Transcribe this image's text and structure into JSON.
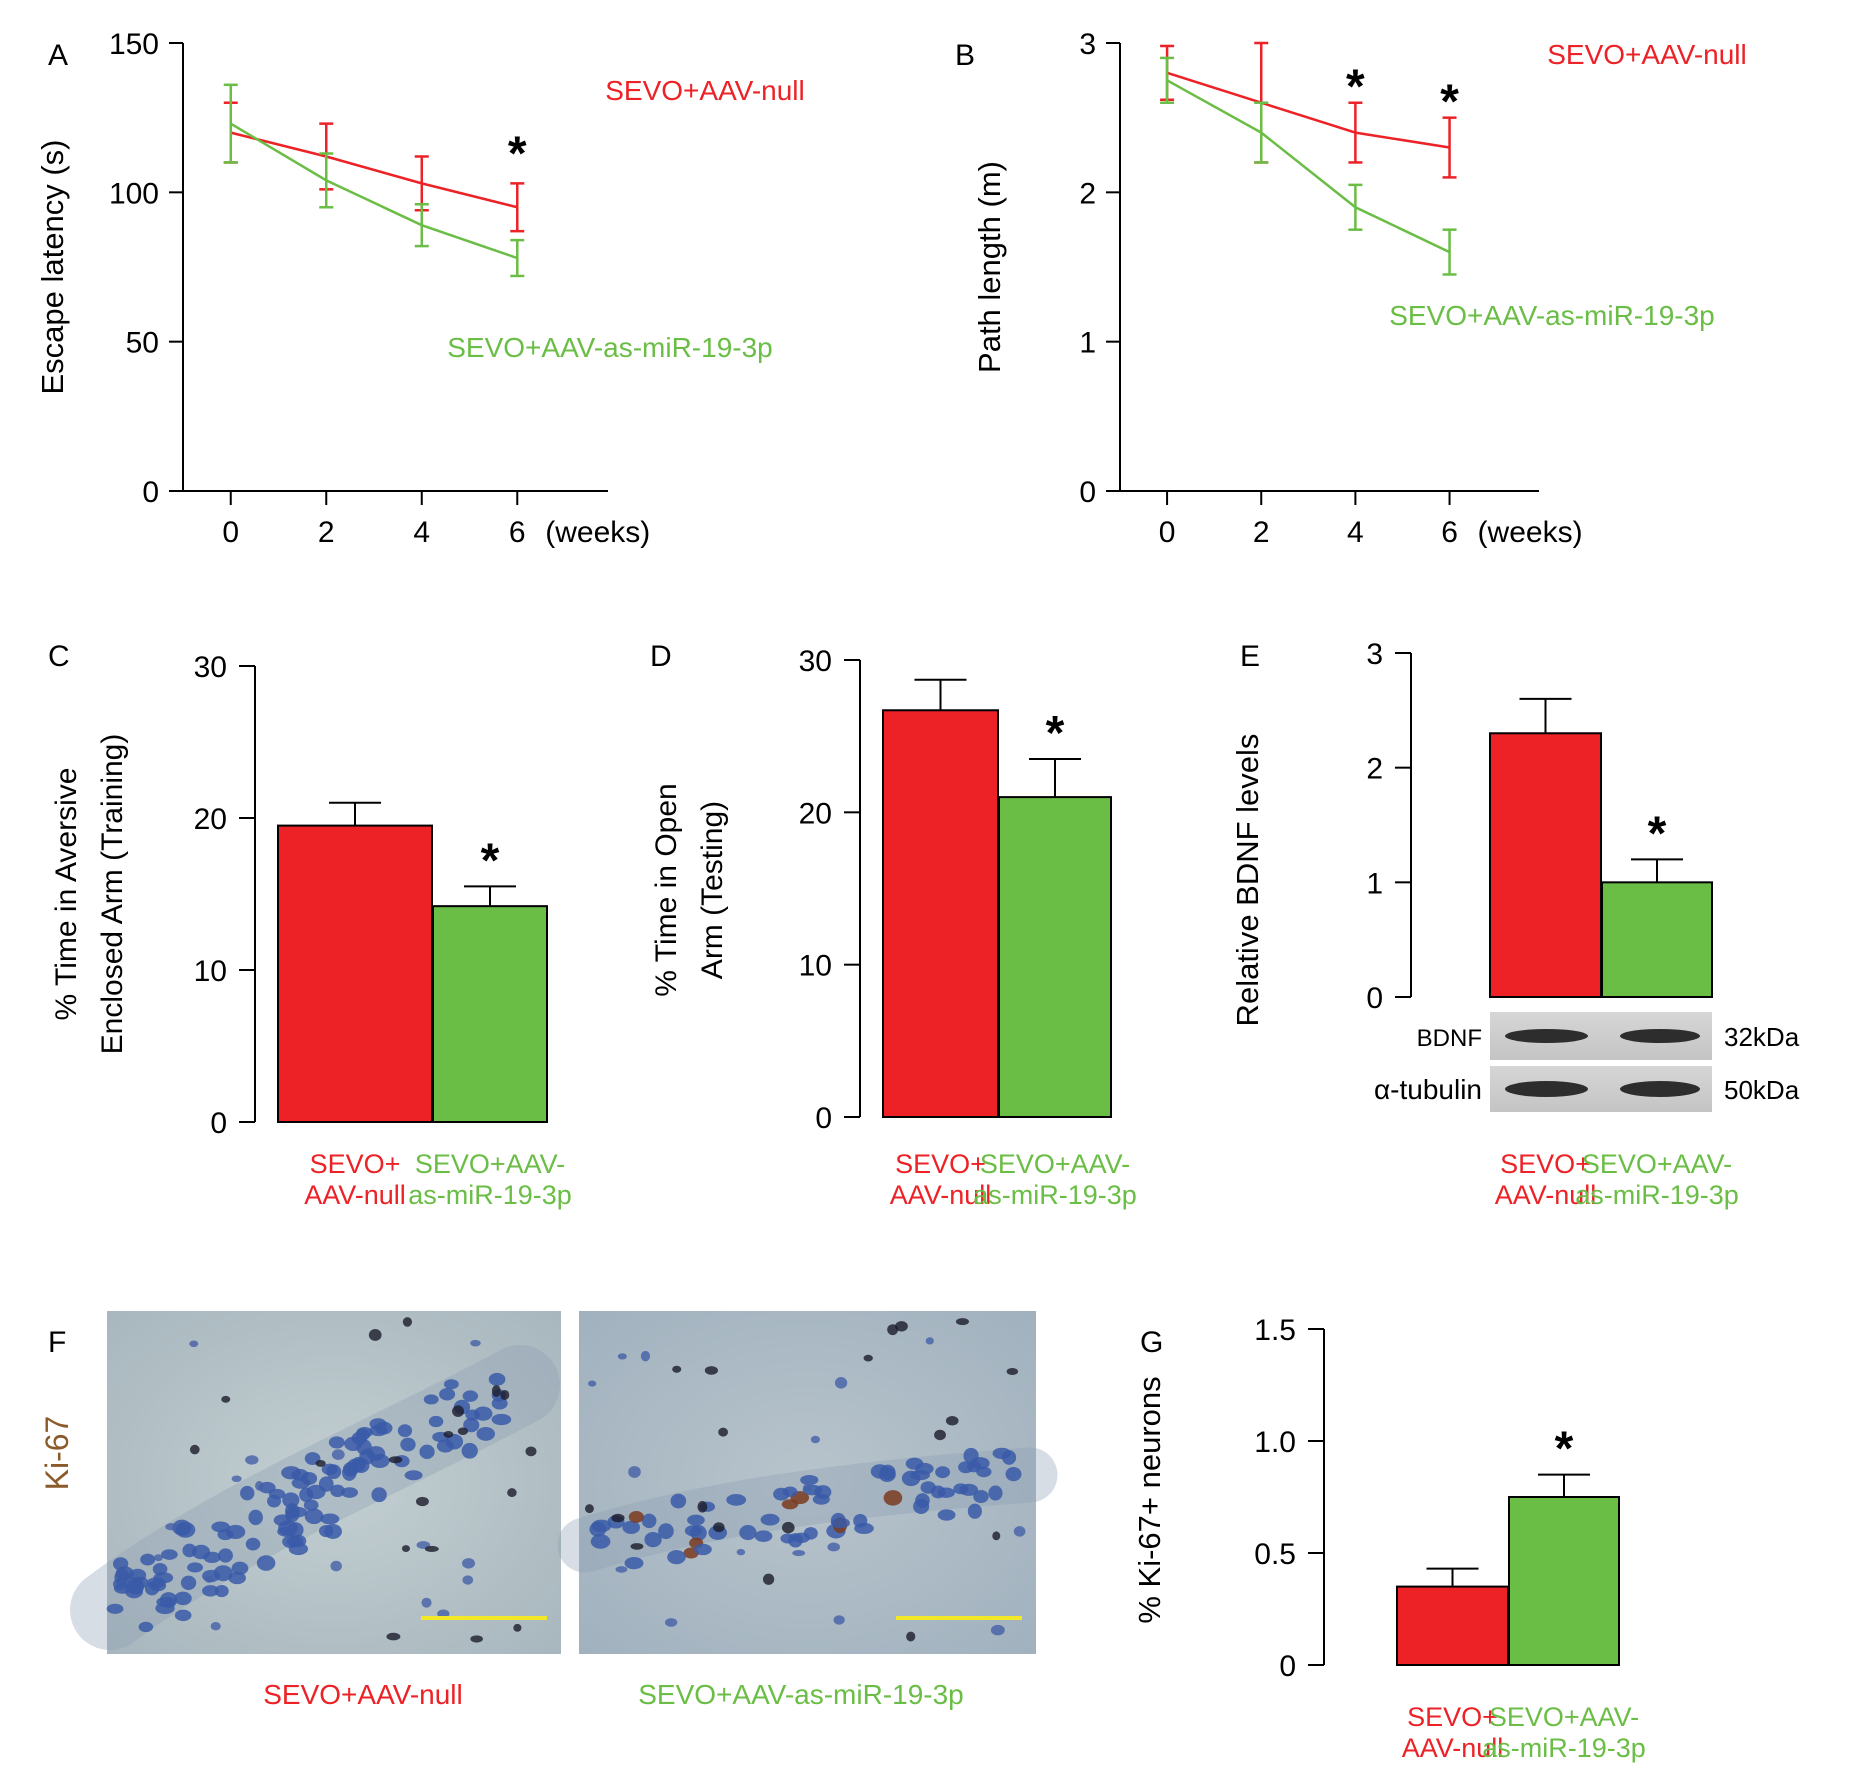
{
  "colors": {
    "red": "#ec2227",
    "green": "#6abd45",
    "axis": "#000000",
    "scalebar": "#f2e827",
    "ki67": "#8b5a2b"
  },
  "chart_data": [
    {
      "panel": "A",
      "type": "line",
      "x": [
        0,
        2,
        4,
        6
      ],
      "x_unit": "(weeks)",
      "ylabel": "Escape latency (s)",
      "ylim": [
        0,
        150
      ],
      "yticks": [
        0,
        50,
        100,
        150
      ],
      "series": [
        {
          "name": "SEVO+AAV-null",
          "color": "red",
          "values": [
            120,
            112,
            103,
            95
          ],
          "errors": [
            10,
            11,
            9,
            8
          ]
        },
        {
          "name": "SEVO+AAV-as-miR-19-3p",
          "color": "green",
          "values": [
            123,
            104,
            89,
            78
          ],
          "errors": [
            13,
            9,
            7,
            6
          ]
        }
      ],
      "annotations": [
        {
          "x": 6,
          "y": 115,
          "text": "*"
        }
      ]
    },
    {
      "panel": "B",
      "type": "line",
      "x": [
        0,
        2,
        4,
        6
      ],
      "x_unit": "(weeks)",
      "ylabel": "Path length (m)",
      "ylim": [
        0,
        3
      ],
      "yticks": [
        0,
        1,
        2,
        3
      ],
      "series": [
        {
          "name": "SEVO+AAV-null",
          "color": "red",
          "values": [
            2.8,
            2.6,
            2.4,
            2.3
          ],
          "errors": [
            0.18,
            0.4,
            0.2,
            0.2
          ]
        },
        {
          "name": "SEVO+AAV-as-miR-19-3p",
          "color": "green",
          "values": [
            2.75,
            2.4,
            1.9,
            1.6
          ],
          "errors": [
            0.15,
            0.2,
            0.15,
            0.15
          ]
        }
      ],
      "annotations": [
        {
          "x": 4,
          "y": 2.75,
          "text": "*"
        },
        {
          "x": 6,
          "y": 2.65,
          "text": "*"
        }
      ]
    },
    {
      "panel": "C",
      "type": "bar",
      "categories": [
        "SEVO+\nAAV-null",
        "SEVO+AAV-\nas-miR-19-3p"
      ],
      "values": [
        19.5,
        14.2
      ],
      "errors": [
        1.5,
        1.3
      ],
      "ylabel": "% Time in Aversive\nEnclosed Arm (Training)",
      "ylim": [
        0,
        30
      ],
      "yticks": [
        0,
        10,
        20,
        30
      ],
      "annotations": [
        {
          "bar": 1,
          "text": "*"
        }
      ]
    },
    {
      "panel": "D",
      "type": "bar",
      "categories": [
        "SEVO+\nAAV-null",
        "SEVO+AAV-\nas-miR-19-3p"
      ],
      "values": [
        26.7,
        21
      ],
      "errors": [
        2,
        2.5
      ],
      "ylabel": "% Time in Open\nArm (Testing)",
      "ylim": [
        0,
        30
      ],
      "yticks": [
        0,
        10,
        20,
        30
      ],
      "annotations": [
        {
          "bar": 1,
          "text": "*"
        }
      ]
    },
    {
      "panel": "E",
      "type": "bar",
      "categories": [
        "SEVO+\nAAV-null",
        "SEVO+AAV-\nas-miR-19-3p"
      ],
      "values": [
        2.3,
        1.0
      ],
      "errors": [
        0.3,
        0.2
      ],
      "ylabel": "Relative BDNF levels",
      "ylim": [
        0,
        3
      ],
      "yticks": [
        0,
        1,
        2,
        3
      ],
      "annotations": [
        {
          "bar": 1,
          "text": "*"
        }
      ],
      "blot": [
        {
          "label": "BDNF",
          "size": "32kDa"
        },
        {
          "label": "α-tubulin",
          "size": "50kDa"
        }
      ]
    },
    {
      "panel": "G",
      "type": "bar",
      "categories": [
        "SEVO+\nAAV-null",
        "SEVO+AAV-\nas-miR-19-3p"
      ],
      "values": [
        0.35,
        0.75
      ],
      "errors": [
        0.08,
        0.1
      ],
      "ylabel": "% Ki-67+ neurons",
      "ylim": [
        0,
        1.5
      ],
      "yticks": [
        "0",
        "0.5",
        "1.0",
        "1.5"
      ],
      "annotations": [
        {
          "bar": 1,
          "text": "*"
        }
      ]
    }
  ],
  "panel_f": {
    "letter": "F",
    "stain": "Ki-67",
    "captions": [
      "SEVO+AAV-null",
      "SEVO+AAV-as-miR-19-3p"
    ]
  }
}
